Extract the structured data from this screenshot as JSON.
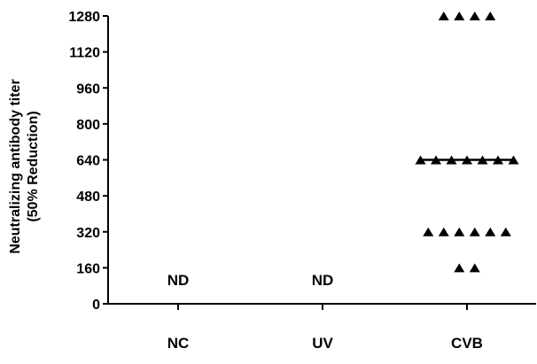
{
  "chart_data": {
    "type": "scatter",
    "ylabel_lines": [
      "Neutralizing antibody titer",
      "(50% Reduction)"
    ],
    "xlabel": "",
    "title": "",
    "categories": [
      "NC",
      "UV",
      "CVB"
    ],
    "ylim": [
      0,
      1280
    ],
    "yticks": [
      0,
      160,
      320,
      480,
      640,
      800,
      960,
      1120,
      1280
    ],
    "marker": "triangle",
    "grid": false,
    "legend": "none",
    "annotations": [
      {
        "category": "NC",
        "text": "ND"
      },
      {
        "category": "UV",
        "text": "ND"
      }
    ],
    "series": [
      {
        "category": "CVB",
        "points": [
          {
            "y": 1280,
            "count": 4
          },
          {
            "y": 640,
            "count": 7
          },
          {
            "y": 320,
            "count": 6
          },
          {
            "y": 160,
            "count": 2
          }
        ],
        "median": 640
      }
    ]
  }
}
